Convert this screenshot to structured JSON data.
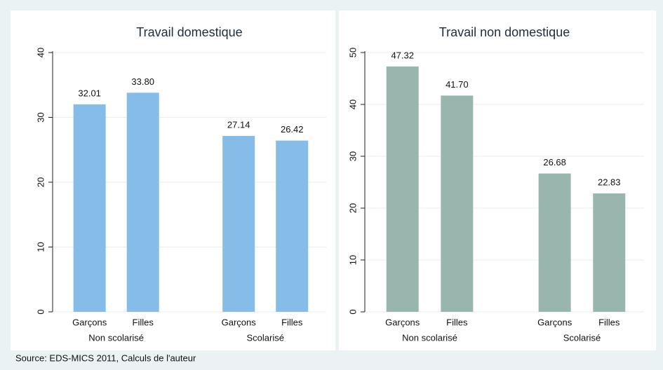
{
  "chart_data": [
    {
      "type": "bar",
      "title": "Travail domestique",
      "categories": [
        "Garçons",
        "Filles",
        "Garçons",
        "Filles"
      ],
      "groups": [
        "Non scolarisé",
        "Scolarisé"
      ],
      "values": [
        32.01,
        33.8,
        27.14,
        26.42
      ],
      "value_labels": [
        "32.01",
        "33.80",
        "27.14",
        "26.42"
      ],
      "color": "#85bde8",
      "ylim": [
        0,
        40
      ],
      "yticks": [
        0,
        10,
        20,
        30,
        40
      ],
      "grid": true
    },
    {
      "type": "bar",
      "title": "Travail non domestique",
      "categories": [
        "Garçons",
        "Filles",
        "Garçons",
        "Filles"
      ],
      "groups": [
        "Non scolarisé",
        "Scolarisé"
      ],
      "values": [
        47.32,
        41.7,
        26.68,
        22.83
      ],
      "value_labels": [
        "47.32",
        "41.70",
        "26.68",
        "22.83"
      ],
      "color": "#98b6ae",
      "ylim": [
        0,
        50
      ],
      "yticks": [
        0,
        10,
        20,
        30,
        40,
        50
      ],
      "grid": true
    }
  ],
  "source": "Source:  EDS-MICS 2011, Calculs de l'auteur"
}
